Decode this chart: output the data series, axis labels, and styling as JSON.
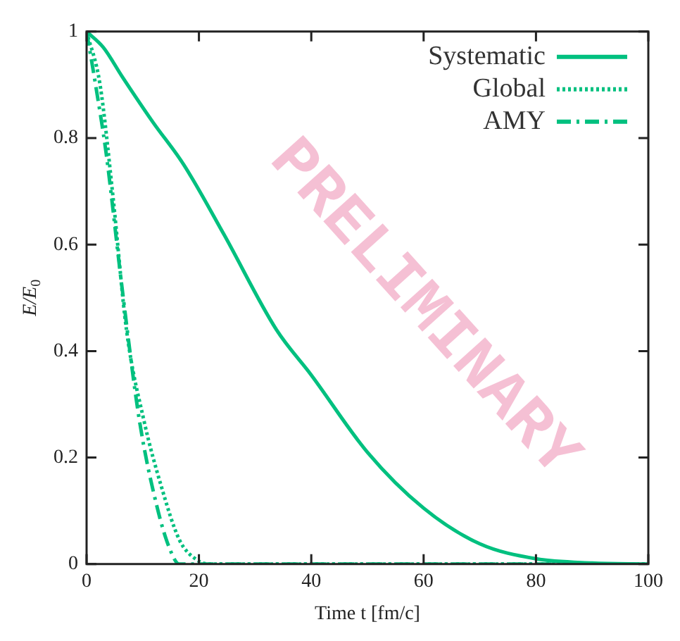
{
  "chart_data": {
    "type": "line",
    "xlabel": "Time t [fm/c]",
    "ylabel": "E/E$_{0}$",
    "xlim": [
      0,
      100
    ],
    "xticks": [
      0,
      20,
      40,
      60,
      80,
      100
    ],
    "ylim": [
      0,
      1
    ],
    "yticks": [
      0,
      0.2,
      0.4,
      0.6,
      0.8,
      1
    ],
    "grid": false,
    "legend": "top right",
    "marker": "none",
    "annotations": [
      "PRELIMINARY"
    ],
    "series": [
      {
        "name": "Systematic",
        "color": "#00c07f",
        "line_style": "solid",
        "x": [
          0,
          3,
          6.3,
          11.8,
          17.3,
          24.4,
          33.8,
          40,
          50,
          60,
          70,
          80,
          90,
          100
        ],
        "values": [
          1,
          0.97,
          0.916,
          0.83,
          0.75,
          0.62,
          0.44,
          0.355,
          0.21,
          0.105,
          0.038,
          0.01,
          0.002,
          0
        ]
      },
      {
        "name": "Global",
        "color": "#00c07f",
        "line_style": "dotted",
        "x": [
          0,
          2.4,
          4.7,
          7.1,
          10.2,
          13.3,
          16.5,
          19.6,
          22,
          40,
          60,
          80,
          100
        ],
        "values": [
          1,
          0.9,
          0.69,
          0.44,
          0.27,
          0.146,
          0.046,
          0.008,
          0,
          0,
          0,
          0,
          0
        ]
      },
      {
        "name": "AMY",
        "color": "#00c07f",
        "line_style": "dashed-dot",
        "x": [
          0,
          1.6,
          3.5,
          6.3,
          9.4,
          12.6,
          14.9,
          16.5,
          20,
          40,
          60,
          80,
          100
        ],
        "values": [
          1,
          0.9,
          0.77,
          0.52,
          0.27,
          0.105,
          0.026,
          0,
          0,
          0,
          0,
          0,
          0
        ]
      }
    ]
  }
}
